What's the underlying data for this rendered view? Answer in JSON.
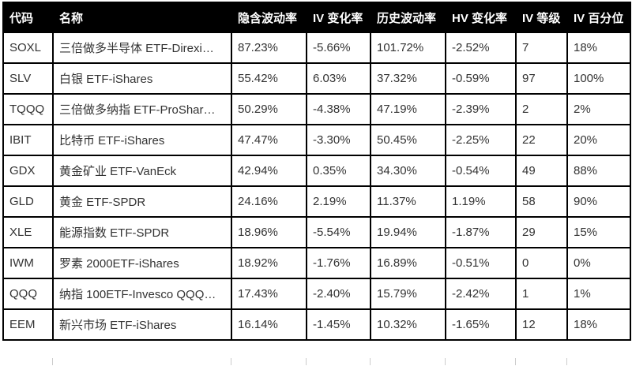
{
  "chart_data": {
    "type": "table",
    "columns": [
      "代码",
      "名称",
      "隐含波动率",
      "IV 变化率",
      "历史波动率",
      "HV 变化率",
      "IV 等级",
      "IV 百分位"
    ],
    "rows": [
      [
        "SOXL",
        "三倍做多半导体 ETF-Direxi…",
        "87.23%",
        "-5.66%",
        "101.72%",
        "-2.52%",
        "7",
        "18%"
      ],
      [
        "SLV",
        "白银 ETF-iShares",
        "55.42%",
        "6.03%",
        "37.32%",
        "-0.59%",
        "97",
        "100%"
      ],
      [
        "TQQQ",
        "三倍做多纳指 ETF-ProShar…",
        "50.29%",
        "-4.38%",
        "47.19%",
        "-2.39%",
        "2",
        "2%"
      ],
      [
        "IBIT",
        "比特币 ETF-iShares",
        "47.47%",
        "-3.30%",
        "50.45%",
        "-2.25%",
        "22",
        "20%"
      ],
      [
        "GDX",
        "黄金矿业 ETF-VanEck",
        "42.94%",
        "0.35%",
        "34.30%",
        "-0.54%",
        "49",
        "88%"
      ],
      [
        "GLD",
        "黄金 ETF-SPDR",
        "24.16%",
        "2.19%",
        "11.37%",
        "1.19%",
        "58",
        "90%"
      ],
      [
        "XLE",
        "能源指数 ETF-SPDR",
        "18.96%",
        "-5.54%",
        "19.94%",
        "-1.87%",
        "29",
        "15%"
      ],
      [
        "IWM",
        "罗素 2000ETF-iShares",
        "18.92%",
        "-1.76%",
        "16.89%",
        "-0.51%",
        "0",
        "0%"
      ],
      [
        "QQQ",
        "纳指 100ETF-Invesco QQQ…",
        "17.43%",
        "-2.40%",
        "15.79%",
        "-2.42%",
        "1",
        "1%"
      ],
      [
        "EEM",
        "新兴市场 ETF-iShares",
        "16.14%",
        "-1.45%",
        "10.32%",
        "-1.65%",
        "12",
        "18%"
      ]
    ],
    "title": "",
    "legend": "none",
    "grid": "on"
  },
  "colors": {
    "header_bg": "#000000",
    "header_text": "#ffffff",
    "cell_text": "#333333",
    "border": "#000000",
    "cutoff_line": "#cccccc"
  }
}
